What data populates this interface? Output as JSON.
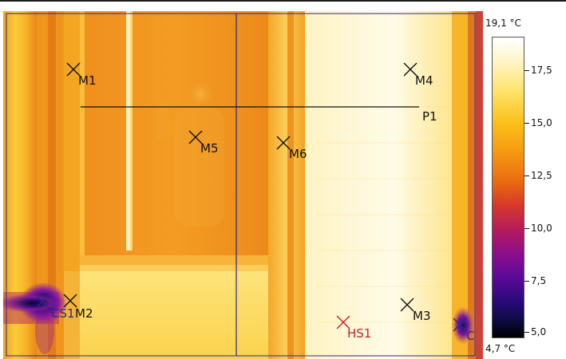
{
  "image": {
    "description_kind": "thermal-image",
    "palette": "iron",
    "colors": {
      "hot": "#fffbe0",
      "warm": "#f7a21a",
      "mid": "#e56b12",
      "cold": "#3a0a7a",
      "coldest": "#000010",
      "line_color": "#2a2a8a"
    }
  },
  "markers": {
    "M1": "M1",
    "M2": "M2",
    "M3": "M3",
    "M4": "M4",
    "M5": "M5",
    "M6": "M6",
    "P1": "P1",
    "CS1": "CS1",
    "HS1": "HS1",
    "C": "C"
  },
  "scale": {
    "max": "19,1 °C",
    "min": "4,7 °C",
    "ticks": [
      "17,5",
      "15,0",
      "12,5",
      "10,0",
      "7,5",
      "5,0"
    ]
  }
}
